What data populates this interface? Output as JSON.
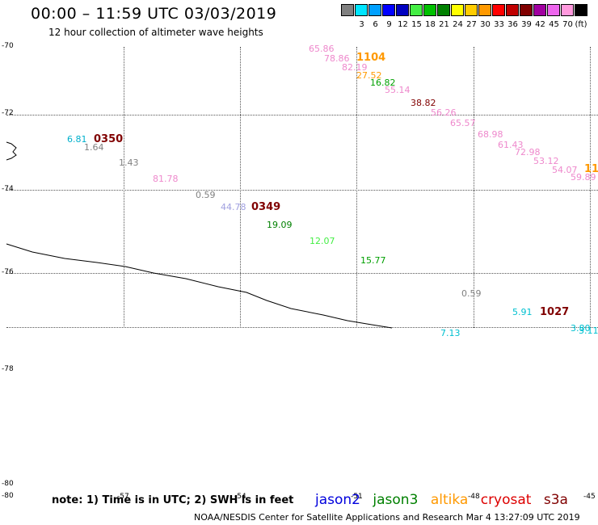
{
  "title": "00:00 – 11:59 UTC 03/03/2019",
  "subtitle": "12 hour collection of altimeter wave heights",
  "legend": {
    "unit": "(ft)",
    "swatches": [
      {
        "color": "#808080",
        "label": ""
      },
      {
        "color": "#00e5ff",
        "label": "3"
      },
      {
        "color": "#00a0ff",
        "label": "6"
      },
      {
        "color": "#0000ff",
        "label": "9"
      },
      {
        "color": "#0000c0",
        "label": "12"
      },
      {
        "color": "#44ee44",
        "label": "15"
      },
      {
        "color": "#00c000",
        "label": "18"
      },
      {
        "color": "#008000",
        "label": "21"
      },
      {
        "color": "#ffff00",
        "label": "24"
      },
      {
        "color": "#ffcc00",
        "label": "27"
      },
      {
        "color": "#ff9900",
        "label": "30"
      },
      {
        "color": "#ff0000",
        "label": "33"
      },
      {
        "color": "#c00000",
        "label": "36"
      },
      {
        "color": "#800000",
        "label": "39"
      },
      {
        "color": "#a000a0",
        "label": "42"
      },
      {
        "color": "#ee66ee",
        "label": "45"
      },
      {
        "color": "#ff99dd",
        "label": "70"
      },
      {
        "color": "#000000",
        "label": ""
      }
    ]
  },
  "lat_labels": [
    "-70",
    "-72",
    "-74",
    "-76",
    "-78",
    "-80",
    "-80"
  ],
  "lon_labels": [
    "-57",
    "-54",
    "-51",
    "-48",
    "-45"
  ],
  "wave_values": [
    {
      "text": "65.86",
      "color": "#ee88cc"
    },
    {
      "text": "78.86",
      "color": "#ee88cc"
    },
    {
      "text": "82.19",
      "color": "#ee88cc"
    },
    {
      "text": "27.52",
      "color": "#ff9900"
    },
    {
      "text": "16.82",
      "color": "#00a000"
    },
    {
      "text": "55.14",
      "color": "#ee88cc"
    },
    {
      "text": "38.82",
      "color": "#800000"
    },
    {
      "text": "56.26",
      "color": "#ee88cc"
    },
    {
      "text": "65.57",
      "color": "#ee88cc"
    },
    {
      "text": "68.98",
      "color": "#ee88cc"
    },
    {
      "text": "61.43",
      "color": "#ee88cc"
    },
    {
      "text": "72.98",
      "color": "#ee88cc"
    },
    {
      "text": "53.12",
      "color": "#ee88cc"
    },
    {
      "text": "54.07",
      "color": "#ee88cc"
    },
    {
      "text": "59.89",
      "color": "#ee88cc"
    },
    {
      "text": "6.81",
      "color": "#00b0cc"
    },
    {
      "text": "1.64",
      "color": "#808080"
    },
    {
      "text": "1.43",
      "color": "#808080"
    },
    {
      "text": "81.78",
      "color": "#ee88cc"
    },
    {
      "text": "0.59",
      "color": "#808080"
    },
    {
      "text": "44.78",
      "color": "#a0a0e0"
    },
    {
      "text": "19.09",
      "color": "#008000"
    },
    {
      "text": "12.07",
      "color": "#44ee44"
    },
    {
      "text": "15.77",
      "color": "#00a000"
    },
    {
      "text": "0.59",
      "color": "#808080"
    },
    {
      "text": "5.91",
      "color": "#00c0d0"
    },
    {
      "text": "7.13",
      "color": "#00c0d0"
    },
    {
      "text": "3.80",
      "color": "#00c0d0"
    },
    {
      "text": "3.11",
      "color": "#00c0d0"
    }
  ],
  "pass_times": [
    {
      "text": "1104",
      "color": "#ff9900"
    },
    {
      "text": "0350",
      "color": "#800000"
    },
    {
      "text": "0349",
      "color": "#800000"
    },
    {
      "text": "1027",
      "color": "#800000"
    },
    {
      "text": "11",
      "color": "#ff9900"
    }
  ],
  "note": "note: 1) Time is in UTC; 2) SWH is in feet",
  "satellites": [
    {
      "name": "jason2",
      "color": "#0000dd"
    },
    {
      "name": "jason3",
      "color": "#008000"
    },
    {
      "name": "altika",
      "color": "#ff9900"
    },
    {
      "name": "cryosat",
      "color": "#dd0000"
    },
    {
      "name": "s3a",
      "color": "#800000"
    }
  ],
  "footer": "NOAA/NESDIS Center for Satellite Applications and Research    Mar  4 13:27:09 UTC 2019"
}
